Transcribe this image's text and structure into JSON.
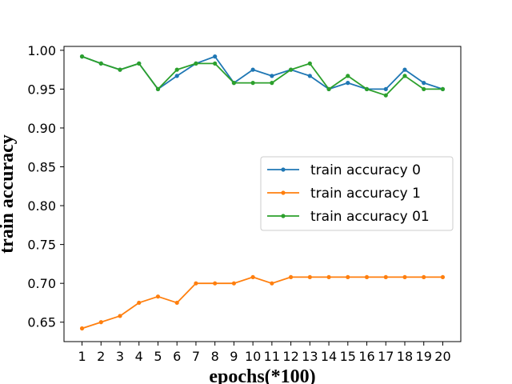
{
  "chart_data": {
    "type": "line",
    "title": "",
    "xlabel": "epochs(*100)",
    "ylabel": "train accuracy",
    "x": [
      1,
      2,
      3,
      4,
      5,
      6,
      7,
      8,
      9,
      10,
      11,
      12,
      13,
      14,
      15,
      16,
      17,
      18,
      19,
      20
    ],
    "xticks": [
      "1",
      "2",
      "3",
      "4",
      "5",
      "6",
      "7",
      "8",
      "9",
      "10",
      "11",
      "12",
      "13",
      "14",
      "15",
      "16",
      "17",
      "18",
      "19",
      "20"
    ],
    "ylim": [
      0.625,
      1.005
    ],
    "yticks": [
      0.65,
      0.7,
      0.75,
      0.8,
      0.85,
      0.9,
      0.95,
      1.0
    ],
    "ytick_labels": [
      "0.65",
      "0.70",
      "0.75",
      "0.80",
      "0.85",
      "0.90",
      "0.95",
      "1.00"
    ],
    "grid": false,
    "legend_position": "center-right",
    "series": [
      {
        "name": "train accuracy 0",
        "color": "#1f77b4",
        "values": [
          0.992,
          0.983,
          0.975,
          0.983,
          0.95,
          0.967,
          0.983,
          0.992,
          0.958,
          0.975,
          0.967,
          0.975,
          0.967,
          0.95,
          0.958,
          0.95,
          0.95,
          0.975,
          0.958,
          0.95
        ]
      },
      {
        "name": "train accuracy 1",
        "color": "#ff7f0e",
        "values": [
          0.642,
          0.65,
          0.658,
          0.675,
          0.683,
          0.675,
          0.7,
          0.7,
          0.7,
          0.708,
          0.7,
          0.708,
          0.708,
          0.708,
          0.708,
          0.708,
          0.708,
          0.708,
          0.708,
          0.708
        ]
      },
      {
        "name": "train accuracy 01",
        "color": "#2ca02c",
        "values": [
          0.992,
          0.983,
          0.975,
          0.983,
          0.95,
          0.975,
          0.983,
          0.983,
          0.958,
          0.958,
          0.958,
          0.975,
          0.983,
          0.95,
          0.967,
          0.95,
          0.942,
          0.967,
          0.95,
          0.95
        ]
      }
    ]
  }
}
